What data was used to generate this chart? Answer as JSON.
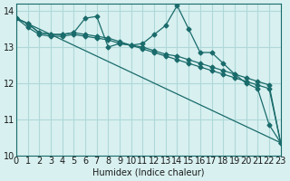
{
  "title": "",
  "xlabel": "Humidex (Indice chaleur)",
  "ylabel": "",
  "bg_color": "#d8f0f0",
  "grid_color": "#b0d8d8",
  "line_color": "#1a6b6b",
  "xlim": [
    0,
    23
  ],
  "ylim": [
    10,
    14.2
  ],
  "yticks": [
    10,
    11,
    12,
    13,
    14
  ],
  "xticks": [
    0,
    1,
    2,
    3,
    4,
    5,
    6,
    7,
    8,
    9,
    10,
    11,
    12,
    13,
    14,
    15,
    16,
    17,
    18,
    19,
    20,
    21,
    22,
    23
  ],
  "series": [
    {
      "x": [
        0,
        1,
        2,
        3,
        4,
        5,
        6,
        7,
        8,
        9,
        10,
        11,
        12,
        13,
        14,
        15,
        16,
        17,
        18,
        19,
        20,
        21,
        22,
        23
      ],
      "y": [
        13.8,
        13.65,
        13.4,
        13.35,
        13.35,
        13.4,
        13.8,
        13.85,
        13.0,
        13.1,
        13.05,
        13.1,
        13.35,
        13.6,
        14.15,
        13.5,
        12.85,
        12.85,
        12.55,
        12.25,
        12.0,
        11.85,
        10.85,
        10.35
      ]
    },
    {
      "x": [
        0,
        1,
        2,
        3,
        4,
        5,
        6,
        7,
        8,
        9,
        10,
        11,
        12,
        13,
        14,
        15,
        16,
        17,
        18,
        19,
        20,
        21,
        22,
        23
      ],
      "y": [
        13.8,
        13.65,
        13.4,
        13.35,
        13.35,
        13.4,
        13.35,
        13.3,
        13.25,
        13.15,
        13.05,
        13.0,
        12.9,
        12.8,
        12.75,
        12.65,
        12.55,
        12.45,
        12.35,
        12.25,
        12.15,
        12.05,
        11.95,
        10.35
      ]
    },
    {
      "x": [
        0,
        1,
        2,
        3,
        4,
        5,
        6,
        7,
        8,
        9,
        10,
        11,
        12,
        13,
        14,
        15,
        16,
        17,
        18,
        19,
        20,
        21,
        22,
        23
      ],
      "y": [
        13.8,
        13.55,
        13.35,
        13.3,
        13.3,
        13.35,
        13.3,
        13.25,
        13.2,
        13.1,
        13.05,
        12.95,
        12.85,
        12.75,
        12.65,
        12.55,
        12.45,
        12.35,
        12.25,
        12.15,
        12.05,
        11.95,
        11.85,
        10.35
      ]
    },
    {
      "x": [
        0,
        23
      ],
      "y": [
        13.8,
        10.35
      ]
    }
  ]
}
